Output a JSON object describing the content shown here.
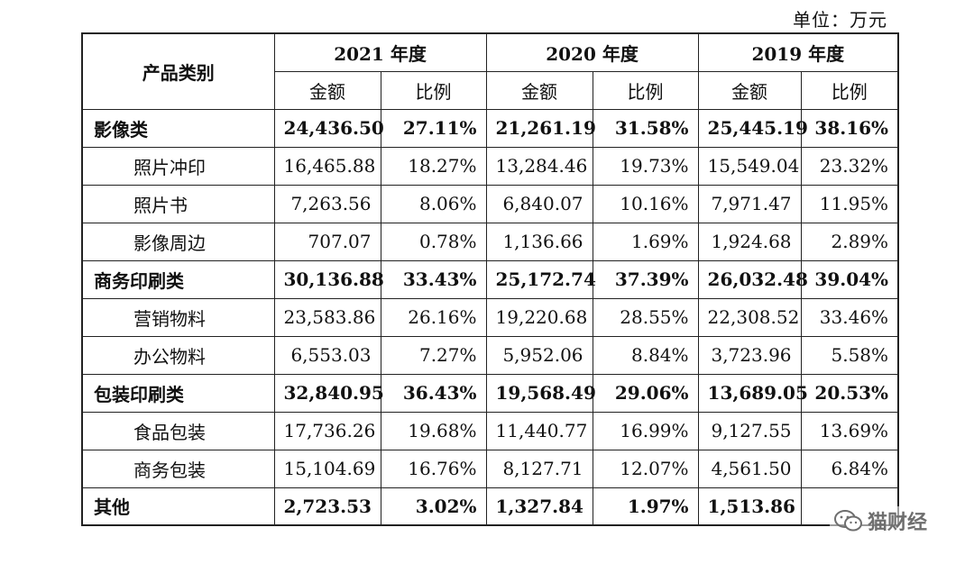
{
  "unit_label": "单位：万元",
  "header": {
    "category_label": "产品类别",
    "years": [
      "2021 年度",
      "2020 年度",
      "2019 年度"
    ],
    "amount_label": "金额",
    "ratio_label": "比例"
  },
  "rows": [
    {
      "name": "影像类",
      "type": "category",
      "v": [
        "24,436.50",
        "27.11%",
        "21,261.19",
        "31.58%",
        "25,445.19",
        "38.16%"
      ]
    },
    {
      "name": "照片冲印",
      "type": "sub",
      "v": [
        "16,465.88",
        "18.27%",
        "13,284.46",
        "19.73%",
        "15,549.04",
        "23.32%"
      ]
    },
    {
      "name": "照片书",
      "type": "sub",
      "v": [
        "7,263.56",
        "8.06%",
        "6,840.07",
        "10.16%",
        "7,971.47",
        "11.95%"
      ]
    },
    {
      "name": "影像周边",
      "type": "sub",
      "v": [
        "707.07",
        "0.78%",
        "1,136.66",
        "1.69%",
        "1,924.68",
        "2.89%"
      ]
    },
    {
      "name": "商务印刷类",
      "type": "category",
      "v": [
        "30,136.88",
        "33.43%",
        "25,172.74",
        "37.39%",
        "26,032.48",
        "39.04%"
      ]
    },
    {
      "name": "营销物料",
      "type": "sub",
      "v": [
        "23,583.86",
        "26.16%",
        "19,220.68",
        "28.55%",
        "22,308.52",
        "33.46%"
      ]
    },
    {
      "name": "办公物料",
      "type": "sub",
      "v": [
        "6,553.03",
        "7.27%",
        "5,952.06",
        "8.84%",
        "3,723.96",
        "5.58%"
      ]
    },
    {
      "name": "包装印刷类",
      "type": "category",
      "v": [
        "32,840.95",
        "36.43%",
        "19,568.49",
        "29.06%",
        "13,689.05",
        "20.53%"
      ]
    },
    {
      "name": "食品包装",
      "type": "sub",
      "v": [
        "17,736.26",
        "19.68%",
        "11,440.77",
        "16.99%",
        "9,127.55",
        "13.69%"
      ]
    },
    {
      "name": "商务包装",
      "type": "sub",
      "v": [
        "15,104.69",
        "16.76%",
        "8,127.71",
        "12.07%",
        "4,561.50",
        "6.84%"
      ]
    },
    {
      "name": "其他",
      "type": "category",
      "v": [
        "2,723.53",
        "3.02%",
        "1,327.84",
        "1.97%",
        "1,513.86",
        ""
      ]
    }
  ],
  "watermark": {
    "text": "猫财经",
    "icon": "wechat-icon"
  }
}
